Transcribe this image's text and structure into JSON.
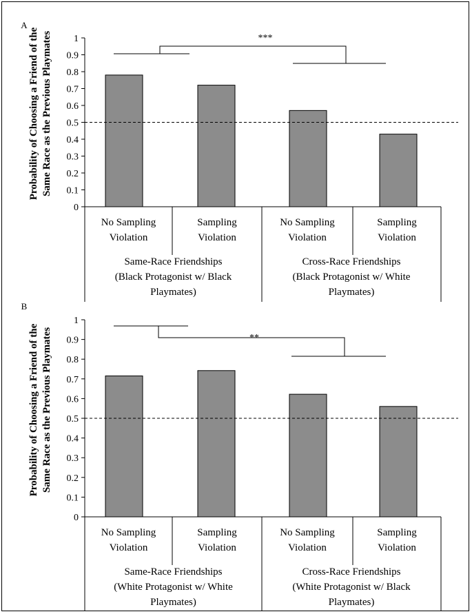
{
  "chart_data": [
    {
      "type": "bar",
      "panel_label": "A",
      "ylabel": [
        "Probability of Choosing a Friend of the",
        "Same Race as the Previous Playmates"
      ],
      "ylim": [
        0,
        1
      ],
      "yticks": [
        "0",
        "0.1",
        "0.2",
        "0.3",
        "0.4",
        "0.5",
        "0.6",
        "0.7",
        "0.8",
        "0.9",
        "1"
      ],
      "categories": [
        [
          "No Sampling",
          "Violation"
        ],
        [
          "Sampling",
          "Violation"
        ],
        [
          "No Sampling",
          "Violation"
        ],
        [
          "Sampling",
          "Violation"
        ]
      ],
      "values": [
        0.78,
        0.72,
        0.57,
        0.43
      ],
      "groups": [
        [
          "Same-Race Friendships",
          "(Black Protagonist w/ Black",
          "Playmates)"
        ],
        [
          "Cross-Race Friendships",
          "(Black Protagonist w/ White",
          "Playmates)"
        ]
      ],
      "reference_line": 0.5,
      "significance": "***",
      "bar_color": "#8c8c8c"
    },
    {
      "type": "bar",
      "panel_label": "B",
      "ylabel": [
        "Probability of Choosing a Friend of the",
        "Same Race as the Previous Playmates"
      ],
      "ylim": [
        0,
        1
      ],
      "yticks": [
        "0",
        "0.1",
        "0.2",
        "0.3",
        "0.4",
        "0.5",
        "0.6",
        "0.7",
        "0.8",
        "0.9",
        "1"
      ],
      "categories": [
        [
          "No Sampling",
          "Violation"
        ],
        [
          "Sampling",
          "Violation"
        ],
        [
          "No Sampling",
          "Violation"
        ],
        [
          "Sampling",
          "Violation"
        ]
      ],
      "values": [
        0.715,
        0.742,
        0.622,
        0.56
      ],
      "groups": [
        [
          "Same-Race Friendships",
          "(White Protagonist w/ White",
          "Playmates)"
        ],
        [
          "Cross-Race Friendships",
          "(White Protagonist w/ Black",
          "Playmates)"
        ]
      ],
      "reference_line": 0.5,
      "significance": "**",
      "bar_color": "#8c8c8c"
    }
  ]
}
